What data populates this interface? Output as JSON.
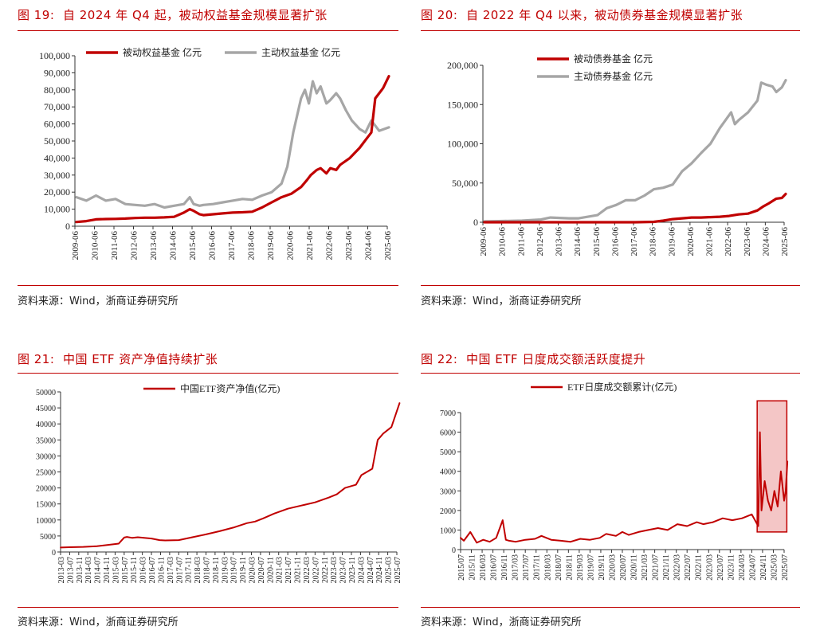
{
  "panels": [
    {
      "figure_label": "图 19:",
      "title": "自 2024 年 Q4 起，被动权益基金规模显著扩张",
      "source": "资料来源：Wind，浙商证券研究所"
    },
    {
      "figure_label": "图 20:",
      "title": "自 2022 年 Q4 以来，被动债券基金规模显著扩张",
      "source": "资料来源：Wind，浙商证券研究所"
    },
    {
      "figure_label": "图 21:",
      "title": "中国 ETF 资产净值持续扩张",
      "source": "资料来源：Wind，浙商证券研究所"
    },
    {
      "figure_label": "图 22:",
      "title": "中国 ETF 日度成交额活跃度提升",
      "source": "资料来源：Wind，浙商证券研究所"
    }
  ],
  "colors": {
    "red": "#c00000",
    "gray": "#a6a6a6",
    "title_red": "#c00000",
    "highlight_fill": "#f4c6c6"
  },
  "chart_data": [
    {
      "type": "line",
      "title": "",
      "xlabel": "",
      "ylabel": "",
      "ylim": [
        0,
        100000
      ],
      "y_ticks": [
        "0",
        "10,000",
        "20,000",
        "30,000",
        "40,000",
        "50,000",
        "60,000",
        "70,000",
        "80,000",
        "90,000",
        "100,000"
      ],
      "x_ticks": [
        "2009-06",
        "2010-06",
        "2011-06",
        "2012-06",
        "2013-06",
        "2014-06",
        "2015-06",
        "2016-06",
        "2017-06",
        "2018-06",
        "2019-06",
        "2020-06",
        "2021-06",
        "2022-06",
        "2023-06",
        "2024-06",
        "2025-06"
      ],
      "legend_position": "top",
      "series": [
        {
          "name": "被动权益基金 亿元",
          "color": "#c00000",
          "x": [
            2009.5,
            2010.0,
            2010.5,
            2011.0,
            2011.5,
            2012.0,
            2012.5,
            2013.0,
            2013.5,
            2014.0,
            2014.5,
            2015.0,
            2015.3,
            2015.5,
            2015.8,
            2016.0,
            2016.5,
            2017.0,
            2017.5,
            2018.0,
            2018.5,
            2019.0,
            2019.5,
            2020.0,
            2020.5,
            2021.0,
            2021.3,
            2021.5,
            2021.8,
            2022.0,
            2022.3,
            2022.5,
            2022.8,
            2023.0,
            2023.5,
            2024.0,
            2024.2,
            2024.4,
            2024.6,
            2024.8,
            2025.0,
            2025.2,
            2025.5
          ],
          "y": [
            2500,
            3000,
            4000,
            4200,
            4300,
            4500,
            4800,
            5000,
            5000,
            5200,
            5500,
            8000,
            10000,
            9000,
            7000,
            6500,
            7000,
            7500,
            8000,
            8200,
            8500,
            11000,
            14000,
            17000,
            19000,
            23000,
            27000,
            30000,
            33000,
            34000,
            31000,
            34000,
            33000,
            36000,
            40000,
            46000,
            49000,
            52000,
            55000,
            75000,
            78000,
            81000,
            88000
          ]
        },
        {
          "name": "主动权益基金 亿元",
          "color": "#a6a6a6",
          "x": [
            2009.5,
            2010.0,
            2010.5,
            2011.0,
            2011.5,
            2012.0,
            2012.5,
            2013.0,
            2013.5,
            2014.0,
            2014.5,
            2015.0,
            2015.3,
            2015.5,
            2015.8,
            2016.0,
            2016.5,
            2017.0,
            2017.5,
            2018.0,
            2018.5,
            2019.0,
            2019.5,
            2020.0,
            2020.3,
            2020.6,
            2021.0,
            2021.2,
            2021.4,
            2021.6,
            2021.8,
            2022.0,
            2022.3,
            2022.5,
            2022.8,
            2023.0,
            2023.3,
            2023.6,
            2024.0,
            2024.3,
            2024.6,
            2025.0,
            2025.5
          ],
          "y": [
            17000,
            15000,
            18000,
            15000,
            16000,
            13000,
            12500,
            12000,
            13000,
            11000,
            12000,
            13000,
            17000,
            13000,
            12000,
            12500,
            13000,
            14000,
            15000,
            16000,
            15500,
            18000,
            20000,
            25000,
            35000,
            55000,
            75000,
            80000,
            72000,
            85000,
            78000,
            82000,
            72000,
            74000,
            78000,
            75000,
            68000,
            62000,
            57000,
            55000,
            62000,
            56000,
            58000
          ]
        }
      ]
    },
    {
      "type": "line",
      "title": "",
      "xlabel": "",
      "ylabel": "",
      "ylim": [
        0,
        200000
      ],
      "y_ticks": [
        "0",
        "50,000",
        "100,000",
        "150,000",
        "200,000"
      ],
      "x_ticks": [
        "2009-06",
        "2010-06",
        "2011-06",
        "2012-06",
        "2013-06",
        "2014-06",
        "2015-06",
        "2016-06",
        "2017-06",
        "2018-06",
        "2019-06",
        "2020-06",
        "2021-06",
        "2022-06",
        "2023-06",
        "2024-06",
        "2025-06"
      ],
      "legend_position": "top",
      "series": [
        {
          "name": "被动债券基金 亿元",
          "color": "#c00000",
          "x": [
            2009.5,
            2010.5,
            2011.5,
            2012.5,
            2013.5,
            2014.5,
            2015.5,
            2016.5,
            2017.5,
            2018.5,
            2019.0,
            2019.5,
            2020.0,
            2020.5,
            2021.0,
            2021.5,
            2022.0,
            2022.5,
            2023.0,
            2023.5,
            2024.0,
            2024.3,
            2024.6,
            2025.0,
            2025.3,
            2025.5
          ],
          "y": [
            0,
            0,
            0,
            0,
            0,
            0,
            0,
            0,
            0,
            500,
            2000,
            4000,
            5000,
            6000,
            6000,
            6500,
            7000,
            8000,
            10000,
            11000,
            15000,
            20000,
            24000,
            30000,
            31000,
            36000
          ]
        },
        {
          "name": "主动债券基金 亿元",
          "color": "#a6a6a6",
          "x": [
            2009.5,
            2010.5,
            2011.5,
            2012.5,
            2013.0,
            2013.5,
            2014.0,
            2014.5,
            2015.0,
            2015.5,
            2016.0,
            2016.5,
            2017.0,
            2017.5,
            2018.0,
            2018.5,
            2019.0,
            2019.5,
            2020.0,
            2020.5,
            2021.0,
            2021.5,
            2022.0,
            2022.3,
            2022.6,
            2022.8,
            2023.0,
            2023.5,
            2024.0,
            2024.2,
            2024.5,
            2024.8,
            2025.0,
            2025.3,
            2025.5
          ],
          "y": [
            1000,
            1500,
            2000,
            3500,
            6000,
            5500,
            5000,
            5000,
            7000,
            9000,
            18000,
            22000,
            28000,
            28000,
            34000,
            42000,
            44000,
            48000,
            65000,
            75000,
            88000,
            100000,
            120000,
            130000,
            140000,
            125000,
            130000,
            140000,
            155000,
            178000,
            175000,
            173000,
            166000,
            172000,
            181000
          ]
        }
      ]
    },
    {
      "type": "line",
      "title": "",
      "xlabel": "",
      "ylabel": "",
      "ylim": [
        0,
        50000
      ],
      "y_ticks": [
        "0",
        "5000",
        "10000",
        "15000",
        "20000",
        "25000",
        "30000",
        "35000",
        "40000",
        "45000",
        "50000"
      ],
      "x_ticks": [
        "2013-03",
        "2013-07",
        "2013-11",
        "2014-03",
        "2014-07",
        "2014-11",
        "2015-03",
        "2015-07",
        "2015-11",
        "2016-03",
        "2016-07",
        "2016-11",
        "2017-03",
        "2017-07",
        "2017-11",
        "2018-03",
        "2018-07",
        "2018-11",
        "2019-03",
        "2019-07",
        "2019-11",
        "2020-03",
        "2020-07",
        "2020-11",
        "2021-03",
        "2021-07",
        "2021-11",
        "2022-03",
        "2022-07",
        "2022-11",
        "2023-03",
        "2023-07",
        "2023-11",
        "2024-03",
        "2024-07",
        "2024-11",
        "2025-03",
        "2025-07"
      ],
      "legend_position": "top",
      "series": [
        {
          "name": "中国ETF资产净值(亿元)",
          "color": "#c00000",
          "x": [
            2013.17,
            2013.5,
            2014.0,
            2014.5,
            2015.0,
            2015.3,
            2015.5,
            2015.6,
            2015.8,
            2016.0,
            2016.5,
            2016.8,
            2017.0,
            2017.5,
            2018.0,
            2018.5,
            2019.0,
            2019.5,
            2020.0,
            2020.3,
            2020.6,
            2021.0,
            2021.5,
            2022.0,
            2022.5,
            2023.0,
            2023.3,
            2023.6,
            2024.0,
            2024.2,
            2024.4,
            2024.6,
            2024.8,
            2025.0,
            2025.3,
            2025.6
          ],
          "y": [
            1400,
            1500,
            1600,
            1800,
            2300,
            2600,
            4500,
            4700,
            4400,
            4600,
            4200,
            3700,
            3600,
            3700,
            4600,
            5500,
            6500,
            7600,
            9000,
            9500,
            10500,
            12000,
            13500,
            14500,
            15500,
            17000,
            18000,
            20000,
            21000,
            24000,
            25000,
            26000,
            35000,
            37000,
            39000,
            46500
          ]
        }
      ]
    },
    {
      "type": "line",
      "title": "",
      "xlabel": "",
      "ylabel": "",
      "ylim": [
        0,
        7000
      ],
      "y_ticks": [
        "0",
        "1000",
        "2000",
        "3000",
        "4000",
        "5000",
        "6000",
        "7000"
      ],
      "x_ticks": [
        "2015/07",
        "2015/11",
        "2016/03",
        "2016/07",
        "2016/11",
        "2017/03",
        "2017/07",
        "2017/11",
        "2018/03",
        "2018/07",
        "2018/11",
        "2019/03",
        "2019/07",
        "2019/11",
        "2020/03",
        "2020/07",
        "2020/11",
        "2021/03",
        "2021/07",
        "2021/11",
        "2022/03",
        "2022/07",
        "2022/11",
        "2023/03",
        "2023/07",
        "2023/11",
        "2024/03",
        "2024/07",
        "2024/11",
        "2025/03",
        "2025/07"
      ],
      "legend_position": "top",
      "highlight_region": {
        "x_start": "2024/09",
        "x_end": "2025/08",
        "y_start": 900,
        "y_end": 7600
      },
      "series": [
        {
          "name": "ETF日度成交额累计(亿元)",
          "color": "#c00000",
          "x": [
            2015.5,
            2015.6,
            2015.8,
            2016.0,
            2016.2,
            2016.4,
            2016.6,
            2016.8,
            2016.9,
            2017.0,
            2017.2,
            2017.5,
            2017.8,
            2018.0,
            2018.3,
            2018.6,
            2018.9,
            2019.2,
            2019.5,
            2019.8,
            2020.0,
            2020.3,
            2020.5,
            2020.7,
            2021.0,
            2021.3,
            2021.6,
            2021.9,
            2022.2,
            2022.5,
            2022.8,
            2023.0,
            2023.3,
            2023.6,
            2023.9,
            2024.2,
            2024.5,
            2024.7,
            2024.75,
            2024.8,
            2024.9,
            2025.0,
            2025.1,
            2025.2,
            2025.3,
            2025.4,
            2025.5,
            2025.55,
            2025.6
          ],
          "y": [
            600,
            450,
            900,
            350,
            500,
            400,
            600,
            1500,
            500,
            450,
            400,
            500,
            550,
            700,
            500,
            450,
            400,
            550,
            500,
            600,
            800,
            700,
            900,
            750,
            900,
            1000,
            1100,
            1000,
            1300,
            1200,
            1400,
            1300,
            1400,
            1600,
            1500,
            1600,
            1800,
            1200,
            6000,
            2000,
            3500,
            2500,
            2000,
            3000,
            2200,
            4000,
            2500,
            3000,
            4500
          ]
        }
      ]
    }
  ]
}
